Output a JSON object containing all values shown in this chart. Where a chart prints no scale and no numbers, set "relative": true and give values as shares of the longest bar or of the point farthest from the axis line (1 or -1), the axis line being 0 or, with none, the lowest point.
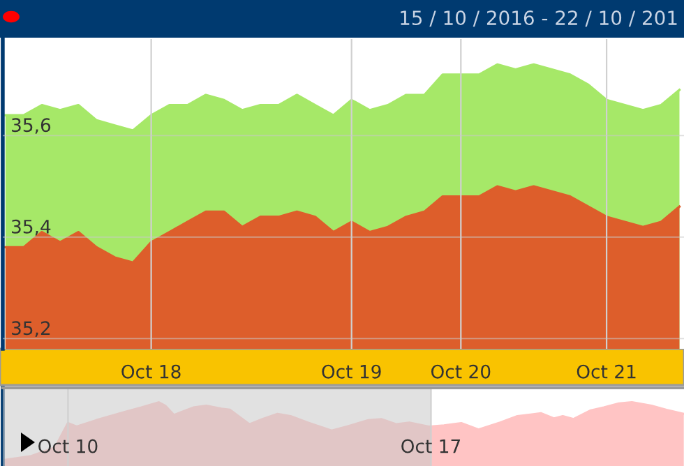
{
  "chart_data": [
    {
      "type": "area",
      "title": "15 / 10 / 2016 - 22 / 10 / 201",
      "categories": [
        null,
        null,
        null,
        null,
        null,
        null,
        null,
        null,
        "Oct 18",
        null,
        null,
        null,
        null,
        null,
        null,
        null,
        null,
        null,
        null,
        "Oct 19",
        null,
        null,
        null,
        null,
        null,
        "Oct 20",
        null,
        null,
        null,
        null,
        null,
        null,
        null,
        "Oct 21",
        null,
        null,
        null,
        null
      ],
      "series": [
        {
          "color": "#a6e868",
          "values": [
            35.64,
            35.64,
            35.66,
            35.65,
            35.66,
            35.63,
            35.62,
            35.61,
            35.64,
            35.66,
            35.66,
            35.68,
            35.67,
            35.65,
            35.66,
            35.66,
            35.68,
            35.66,
            35.64,
            35.67,
            35.65,
            35.66,
            35.68,
            35.68,
            35.72,
            35.72,
            35.72,
            35.74,
            35.73,
            35.74,
            35.73,
            35.72,
            35.7,
            35.67,
            35.66,
            35.65,
            35.66,
            35.69
          ]
        },
        {
          "color": "#dd5e2b",
          "values": [
            35.38,
            35.38,
            35.41,
            35.39,
            35.41,
            35.38,
            35.36,
            35.35,
            35.39,
            35.41,
            35.43,
            35.45,
            35.45,
            35.42,
            35.44,
            35.44,
            35.45,
            35.44,
            35.41,
            35.43,
            35.41,
            35.42,
            35.44,
            35.45,
            35.48,
            35.48,
            35.48,
            35.5,
            35.49,
            35.5,
            35.49,
            35.48,
            35.46,
            35.44,
            35.43,
            35.42,
            35.43,
            35.46
          ]
        }
      ],
      "ylim": [
        35.18,
        35.79
      ],
      "yticks": [
        {
          "value": 35.2,
          "label": "35,2"
        },
        {
          "value": 35.4,
          "label": "35,4"
        },
        {
          "value": 35.6,
          "label": "35,6"
        }
      ],
      "grid": true
    },
    {
      "type": "area",
      "relative": true,
      "tick_labels": "x",
      "x": [
        "2016-10-08T18:00",
        "2016-10-09T07:00",
        "2016-10-09T18:00",
        "2016-10-10T00:00",
        "2016-10-10T04:00",
        "2016-10-10T13:00",
        "2016-10-11T02:00",
        "2016-10-11T10:00",
        "2016-10-11T18:00",
        "2016-10-11T21:00",
        "2016-10-12T01:00",
        "2016-10-12T10:00",
        "2016-10-12T16:00",
        "2016-10-12T23:00",
        "2016-10-13T03:00",
        "2016-10-13T12:00",
        "2016-10-13T18:00",
        "2016-10-14T01:00",
        "2016-10-14T07:00",
        "2016-10-14T15:00",
        "2016-10-15T02:00",
        "2016-10-15T09:00",
        "2016-10-15T19:00",
        "2016-10-16T01:00",
        "2016-10-16T08:00",
        "2016-10-16T14:00",
        "2016-10-16T23:00",
        "2016-10-17T06:00",
        "2016-10-17T14:00",
        "2016-10-17T22:00",
        "2016-10-18T08:00",
        "2016-10-18T16:00",
        "2016-10-19T03:00",
        "2016-10-19T09:00",
        "2016-10-19T13:00",
        "2016-10-19T18:00",
        "2016-10-20T02:00",
        "2016-10-20T08:00",
        "2016-10-20T15:00",
        "2016-10-20T21:00",
        "2016-10-21T06:00",
        "2016-10-21T13:00",
        "2016-10-21T21:00"
      ],
      "series": [
        {
          "color": "#ffc4c4",
          "values": [
            0,
            0.07,
            0.22,
            0.64,
            0.58,
            0.69,
            0.83,
            0.91,
            1,
            0.94,
            0.78,
            0.91,
            0.94,
            0.89,
            0.87,
            0.62,
            0.71,
            0.8,
            0.76,
            0.65,
            0.51,
            0.58,
            0.69,
            0.71,
            0.62,
            0.65,
            0.58,
            0.6,
            0.64,
            0.53,
            0.65,
            0.76,
            0.81,
            0.72,
            0.76,
            0.71,
            0.86,
            0.91,
            0.98,
            1,
            0.94,
            0.87,
            0.8
          ]
        }
      ],
      "xlim": [
        "2016-10-08T17:48",
        "2016-10-21T21:06"
      ],
      "xticks": [
        {
          "value": "2016-10-10",
          "label": "Oct 10"
        },
        {
          "value": "2016-10-17",
          "label": "Oct 17"
        }
      ],
      "bands": [
        {
          "axis": "x",
          "from": "2016-10-08T17:48",
          "to": "2016-10-17T00:00",
          "color": "#c8c8c8"
        }
      ],
      "grid": "x"
    }
  ]
}
